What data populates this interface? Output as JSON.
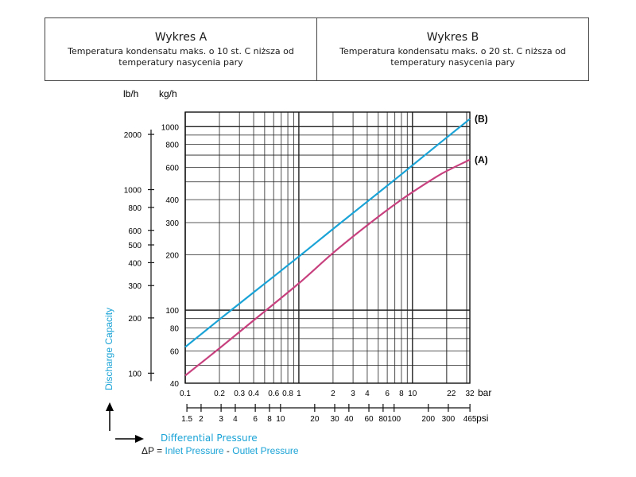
{
  "header": {
    "chart_a_title": "Wykres A",
    "chart_a_desc": "Temperatura kondensatu maks. o 10 st. C niższa od temperatury nasycenia pary",
    "chart_b_title": "Wykres B",
    "chart_b_desc": "Temperatura kondensatu maks. o 20 st. C niższa od temperatury nasycenia pary"
  },
  "footer": {
    "differential": "Differential Pressure",
    "delta_p": "ΔP =",
    "inlet": "Inlet Pressure",
    "dash": "-",
    "outlet": "Outlet Pressure"
  },
  "colors": {
    "curve_a": "#c8417f",
    "curve_b": "#1aa3d6",
    "grid": "#222222",
    "axis_label": "#1aa3d6"
  },
  "chart_data": {
    "type": "line",
    "x_scale": "log",
    "y_scale": "log",
    "xlim": [
      0.1,
      32
    ],
    "ylim": [
      40,
      1200
    ],
    "grid": true,
    "ylabel": "Discharge Capacity",
    "x_unit": "bar",
    "y_unit": "kg/h",
    "x_ticks": [
      0.1,
      0.2,
      0.3,
      0.4,
      0.6,
      0.8,
      1,
      2,
      3,
      4,
      6,
      8,
      10,
      22,
      32
    ],
    "x_tick_labels": [
      "0.1",
      "0.2",
      "0.3",
      "0.4",
      "0.6",
      "0.8",
      "1",
      "2",
      "3",
      "4",
      "6",
      "8",
      "10",
      "22",
      "32"
    ],
    "y_ticks": [
      40,
      60,
      80,
      100,
      200,
      300,
      400,
      600,
      800,
      1000
    ],
    "y_tick_labels": [
      "40",
      "60",
      "80",
      "100",
      "200",
      "300",
      "400",
      "600",
      "800",
      "1000"
    ],
    "psi_axis": {
      "unit": "psi",
      "ticks": [
        1.5,
        2,
        3,
        4,
        6,
        8,
        10,
        20,
        30,
        40,
        60,
        80,
        100,
        200,
        300,
        465
      ],
      "tick_labels": [
        "1.5",
        "2",
        "3",
        "4",
        "6",
        "8",
        "10",
        "20",
        "30",
        "40",
        "60",
        "80",
        "100",
        "200",
        "300",
        "465"
      ]
    },
    "lbh_axis": {
      "unit": "lb/h",
      "ticks": [
        100,
        200,
        300,
        400,
        500,
        600,
        800,
        1000,
        2000
      ],
      "tick_labels": [
        "100",
        "200",
        "300",
        "400",
        "500",
        "600",
        "800",
        "1000",
        "2000"
      ]
    },
    "series": [
      {
        "name": "(B)",
        "x": [
          0.1,
          0.2,
          0.4,
          1,
          2,
          4,
          8,
          16,
          32
        ],
        "y": [
          63,
          89,
          125,
          196,
          277,
          390,
          550,
          780,
          1100
        ]
      },
      {
        "name": "(A)",
        "x": [
          0.1,
          0.2,
          0.4,
          1,
          2,
          4,
          8,
          16,
          22,
          32
        ],
        "y": [
          44,
          62,
          88,
          140,
          205,
          290,
          400,
          530,
          590,
          660
        ]
      }
    ]
  }
}
